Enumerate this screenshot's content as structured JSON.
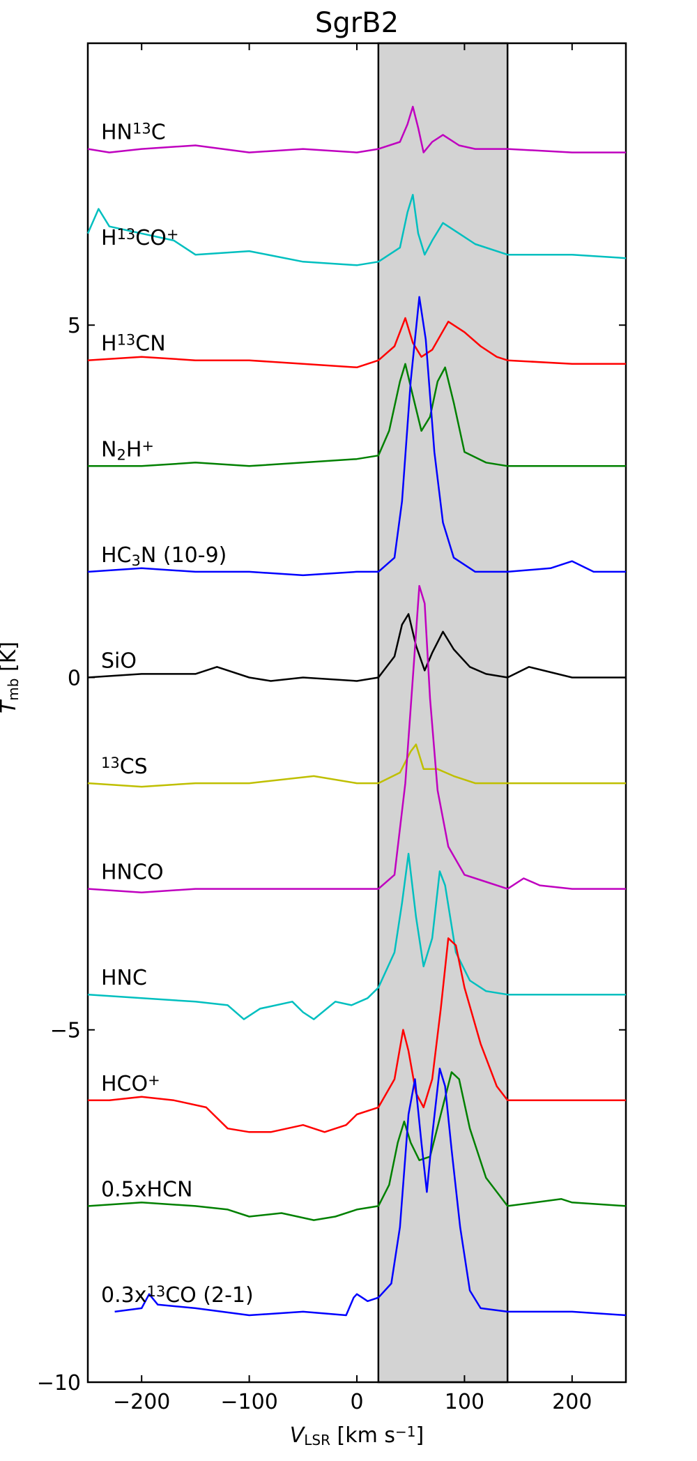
{
  "chart_data": {
    "type": "line",
    "title": "SgrB2",
    "xlabel": "V_LSR [km s^-1]",
    "ylabel": "T_mb [K]",
    "xlim": [
      -250,
      250
    ],
    "ylim": [
      -10,
      9
    ],
    "xticks": [
      -200,
      -100,
      0,
      100,
      200
    ],
    "yticks": [
      -10,
      -5,
      0,
      5
    ],
    "xtick_labels": [
      "−200",
      "−100",
      "0",
      "100",
      "200"
    ],
    "ytick_labels": [
      "−10",
      "−5",
      "0",
      "5"
    ],
    "shaded_region": {
      "x": [
        20,
        140
      ],
      "color": "#d3d3d3"
    },
    "grid": false,
    "legend": "none (labels placed left of each spectrum)",
    "series": [
      {
        "name": "HN13C",
        "color": "#bf00bf",
        "baseline": 7.5,
        "points": [
          [
            -250,
            7.5
          ],
          [
            -230,
            7.45
          ],
          [
            -200,
            7.5
          ],
          [
            -150,
            7.55
          ],
          [
            -100,
            7.45
          ],
          [
            -50,
            7.5
          ],
          [
            0,
            7.45
          ],
          [
            20,
            7.5
          ],
          [
            40,
            7.6
          ],
          [
            47,
            7.85
          ],
          [
            52,
            8.1
          ],
          [
            57,
            7.8
          ],
          [
            62,
            7.45
          ],
          [
            70,
            7.6
          ],
          [
            80,
            7.7
          ],
          [
            95,
            7.55
          ],
          [
            110,
            7.5
          ],
          [
            140,
            7.5
          ],
          [
            200,
            7.45
          ],
          [
            250,
            7.45
          ]
        ]
      },
      {
        "name": "H13CO+",
        "color": "#00bfbf",
        "baseline": 6.0,
        "points": [
          [
            -250,
            6.3
          ],
          [
            -240,
            6.65
          ],
          [
            -230,
            6.4
          ],
          [
            -200,
            6.3
          ],
          [
            -170,
            6.2
          ],
          [
            -150,
            6.0
          ],
          [
            -100,
            6.05
          ],
          [
            -50,
            5.9
          ],
          [
            0,
            5.85
          ],
          [
            20,
            5.9
          ],
          [
            40,
            6.1
          ],
          [
            47,
            6.6
          ],
          [
            52,
            6.85
          ],
          [
            57,
            6.3
          ],
          [
            63,
            6.0
          ],
          [
            70,
            6.2
          ],
          [
            80,
            6.45
          ],
          [
            95,
            6.3
          ],
          [
            110,
            6.15
          ],
          [
            140,
            6.0
          ],
          [
            200,
            6.0
          ],
          [
            250,
            5.95
          ]
        ]
      },
      {
        "name": "H13CN",
        "color": "#ff0000",
        "baseline": 4.5,
        "points": [
          [
            -250,
            4.5
          ],
          [
            -200,
            4.55
          ],
          [
            -150,
            4.5
          ],
          [
            -100,
            4.5
          ],
          [
            -50,
            4.45
          ],
          [
            0,
            4.4
          ],
          [
            20,
            4.5
          ],
          [
            35,
            4.7
          ],
          [
            45,
            5.1
          ],
          [
            52,
            4.75
          ],
          [
            60,
            4.55
          ],
          [
            70,
            4.65
          ],
          [
            85,
            5.05
          ],
          [
            100,
            4.9
          ],
          [
            115,
            4.7
          ],
          [
            130,
            4.55
          ],
          [
            140,
            4.5
          ],
          [
            200,
            4.45
          ],
          [
            250,
            4.45
          ]
        ]
      },
      {
        "name": "N2H+",
        "color": "#008000",
        "baseline": 3.0,
        "points": [
          [
            -250,
            3.0
          ],
          [
            -200,
            3.0
          ],
          [
            -150,
            3.05
          ],
          [
            -100,
            3.0
          ],
          [
            -50,
            3.05
          ],
          [
            0,
            3.1
          ],
          [
            20,
            3.15
          ],
          [
            30,
            3.5
          ],
          [
            40,
            4.2
          ],
          [
            45,
            4.45
          ],
          [
            52,
            4.0
          ],
          [
            60,
            3.5
          ],
          [
            68,
            3.7
          ],
          [
            75,
            4.2
          ],
          [
            82,
            4.4
          ],
          [
            90,
            3.9
          ],
          [
            100,
            3.2
          ],
          [
            120,
            3.05
          ],
          [
            140,
            3.0
          ],
          [
            200,
            3.0
          ],
          [
            250,
            3.0
          ]
        ]
      },
      {
        "name": "HC3N (10-9)",
        "color": "#0000ff",
        "baseline": 1.5,
        "points": [
          [
            -250,
            1.5
          ],
          [
            -200,
            1.55
          ],
          [
            -150,
            1.5
          ],
          [
            -100,
            1.5
          ],
          [
            -50,
            1.45
          ],
          [
            0,
            1.5
          ],
          [
            20,
            1.5
          ],
          [
            35,
            1.7
          ],
          [
            42,
            2.5
          ],
          [
            50,
            4.2
          ],
          [
            58,
            5.4
          ],
          [
            64,
            4.8
          ],
          [
            72,
            3.2
          ],
          [
            80,
            2.2
          ],
          [
            90,
            1.7
          ],
          [
            110,
            1.5
          ],
          [
            140,
            1.5
          ],
          [
            180,
            1.55
          ],
          [
            200,
            1.65
          ],
          [
            220,
            1.5
          ],
          [
            250,
            1.5
          ]
        ]
      },
      {
        "name": "SiO",
        "color": "#000000",
        "baseline": 0.0,
        "points": [
          [
            -250,
            0.0
          ],
          [
            -200,
            0.05
          ],
          [
            -150,
            0.05
          ],
          [
            -130,
            0.15
          ],
          [
            -100,
            0.0
          ],
          [
            -80,
            -0.05
          ],
          [
            -50,
            0.0
          ],
          [
            0,
            -0.05
          ],
          [
            20,
            0.0
          ],
          [
            35,
            0.3
          ],
          [
            42,
            0.75
          ],
          [
            48,
            0.9
          ],
          [
            55,
            0.45
          ],
          [
            63,
            0.1
          ],
          [
            70,
            0.35
          ],
          [
            80,
            0.65
          ],
          [
            90,
            0.4
          ],
          [
            105,
            0.15
          ],
          [
            120,
            0.05
          ],
          [
            140,
            0.0
          ],
          [
            160,
            0.15
          ],
          [
            200,
            0.0
          ],
          [
            250,
            0.0
          ]
        ]
      },
      {
        "name": "13CS",
        "color": "#bfbf00",
        "baseline": -1.5,
        "points": [
          [
            -250,
            -1.5
          ],
          [
            -200,
            -1.55
          ],
          [
            -150,
            -1.5
          ],
          [
            -100,
            -1.5
          ],
          [
            -40,
            -1.4
          ],
          [
            0,
            -1.5
          ],
          [
            20,
            -1.5
          ],
          [
            40,
            -1.35
          ],
          [
            50,
            -1.05
          ],
          [
            55,
            -0.95
          ],
          [
            62,
            -1.3
          ],
          [
            75,
            -1.3
          ],
          [
            90,
            -1.4
          ],
          [
            110,
            -1.5
          ],
          [
            140,
            -1.5
          ],
          [
            200,
            -1.5
          ],
          [
            250,
            -1.5
          ]
        ]
      },
      {
        "name": "HNCO",
        "color": "#bf00bf",
        "baseline": -3.0,
        "points": [
          [
            -250,
            -3.0
          ],
          [
            -200,
            -3.05
          ],
          [
            -150,
            -3.0
          ],
          [
            -100,
            -3.0
          ],
          [
            -50,
            -3.0
          ],
          [
            0,
            -3.0
          ],
          [
            20,
            -3.0
          ],
          [
            35,
            -2.8
          ],
          [
            45,
            -1.5
          ],
          [
            53,
            0.2
          ],
          [
            58,
            1.3
          ],
          [
            63,
            1.05
          ],
          [
            68,
            -0.3
          ],
          [
            75,
            -1.6
          ],
          [
            85,
            -2.4
          ],
          [
            100,
            -2.8
          ],
          [
            120,
            -2.9
          ],
          [
            140,
            -3.0
          ],
          [
            155,
            -2.85
          ],
          [
            170,
            -2.95
          ],
          [
            200,
            -3.0
          ],
          [
            250,
            -3.0
          ]
        ]
      },
      {
        "name": "HNC",
        "color": "#00bfbf",
        "baseline": -4.5,
        "points": [
          [
            -250,
            -4.5
          ],
          [
            -200,
            -4.55
          ],
          [
            -150,
            -4.6
          ],
          [
            -120,
            -4.65
          ],
          [
            -105,
            -4.85
          ],
          [
            -90,
            -4.7
          ],
          [
            -60,
            -4.6
          ],
          [
            -50,
            -4.75
          ],
          [
            -40,
            -4.85
          ],
          [
            -20,
            -4.6
          ],
          [
            -5,
            -4.65
          ],
          [
            10,
            -4.55
          ],
          [
            20,
            -4.4
          ],
          [
            35,
            -3.9
          ],
          [
            42,
            -3.2
          ],
          [
            48,
            -2.5
          ],
          [
            55,
            -3.4
          ],
          [
            62,
            -4.1
          ],
          [
            70,
            -3.7
          ],
          [
            77,
            -2.75
          ],
          [
            82,
            -2.95
          ],
          [
            92,
            -3.9
          ],
          [
            105,
            -4.3
          ],
          [
            120,
            -4.45
          ],
          [
            140,
            -4.5
          ],
          [
            200,
            -4.5
          ],
          [
            250,
            -4.5
          ]
        ]
      },
      {
        "name": "HCO+",
        "color": "#ff0000",
        "baseline": -6.0,
        "points": [
          [
            -250,
            -6.0
          ],
          [
            -230,
            -6.0
          ],
          [
            -200,
            -5.95
          ],
          [
            -170,
            -6.0
          ],
          [
            -140,
            -6.1
          ],
          [
            -120,
            -6.4
          ],
          [
            -100,
            -6.45
          ],
          [
            -80,
            -6.45
          ],
          [
            -50,
            -6.35
          ],
          [
            -30,
            -6.45
          ],
          [
            -10,
            -6.35
          ],
          [
            0,
            -6.2
          ],
          [
            20,
            -6.1
          ],
          [
            35,
            -5.7
          ],
          [
            43,
            -5.0
          ],
          [
            48,
            -5.3
          ],
          [
            55,
            -5.9
          ],
          [
            62,
            -6.1
          ],
          [
            70,
            -5.7
          ],
          [
            78,
            -4.7
          ],
          [
            85,
            -3.7
          ],
          [
            92,
            -3.8
          ],
          [
            100,
            -4.4
          ],
          [
            115,
            -5.2
          ],
          [
            130,
            -5.8
          ],
          [
            140,
            -6.0
          ],
          [
            200,
            -6.0
          ],
          [
            250,
            -6.0
          ]
        ]
      },
      {
        "name": "0.5xHCN",
        "color": "#008000",
        "baseline": -7.5,
        "points": [
          [
            -250,
            -7.5
          ],
          [
            -200,
            -7.45
          ],
          [
            -150,
            -7.5
          ],
          [
            -120,
            -7.55
          ],
          [
            -100,
            -7.65
          ],
          [
            -70,
            -7.6
          ],
          [
            -40,
            -7.7
          ],
          [
            -20,
            -7.65
          ],
          [
            0,
            -7.55
          ],
          [
            20,
            -7.5
          ],
          [
            30,
            -7.2
          ],
          [
            38,
            -6.6
          ],
          [
            44,
            -6.3
          ],
          [
            50,
            -6.6
          ],
          [
            58,
            -6.85
          ],
          [
            68,
            -6.8
          ],
          [
            78,
            -6.2
          ],
          [
            88,
            -5.6
          ],
          [
            95,
            -5.7
          ],
          [
            105,
            -6.4
          ],
          [
            120,
            -7.1
          ],
          [
            140,
            -7.5
          ],
          [
            190,
            -7.4
          ],
          [
            200,
            -7.45
          ],
          [
            250,
            -7.5
          ]
        ]
      },
      {
        "name": "0.3x13CO (2-1)",
        "color": "#0000ff",
        "baseline": -9.0,
        "points": [
          [
            -225,
            -9.0
          ],
          [
            -200,
            -8.95
          ],
          [
            -193,
            -8.75
          ],
          [
            -185,
            -8.9
          ],
          [
            -150,
            -8.95
          ],
          [
            -100,
            -9.05
          ],
          [
            -50,
            -9.0
          ],
          [
            -10,
            -9.05
          ],
          [
            -3,
            -8.8
          ],
          [
            0,
            -8.75
          ],
          [
            5,
            -8.8
          ],
          [
            10,
            -8.85
          ],
          [
            20,
            -8.8
          ],
          [
            32,
            -8.6
          ],
          [
            40,
            -7.8
          ],
          [
            48,
            -6.2
          ],
          [
            54,
            -5.7
          ],
          [
            60,
            -6.6
          ],
          [
            65,
            -7.3
          ],
          [
            70,
            -6.5
          ],
          [
            77,
            -5.55
          ],
          [
            82,
            -5.8
          ],
          [
            88,
            -6.7
          ],
          [
            96,
            -7.8
          ],
          [
            105,
            -8.7
          ],
          [
            115,
            -8.95
          ],
          [
            140,
            -9.0
          ],
          [
            200,
            -9.0
          ],
          [
            250,
            -9.05
          ]
        ]
      }
    ],
    "labels": [
      {
        "text": "HN13C"
      },
      {
        "text": "H13CO+"
      },
      {
        "text": "H13CN"
      },
      {
        "text": "N2H+"
      },
      {
        "text": "HC3N (10-9)"
      },
      {
        "text": "SiO"
      },
      {
        "text": "13CS"
      },
      {
        "text": "HNCO"
      },
      {
        "text": "HNC"
      },
      {
        "text": "HCO+"
      },
      {
        "text": "0.5xHCN"
      },
      {
        "text": "0.3x13CO (2-1)"
      }
    ]
  }
}
